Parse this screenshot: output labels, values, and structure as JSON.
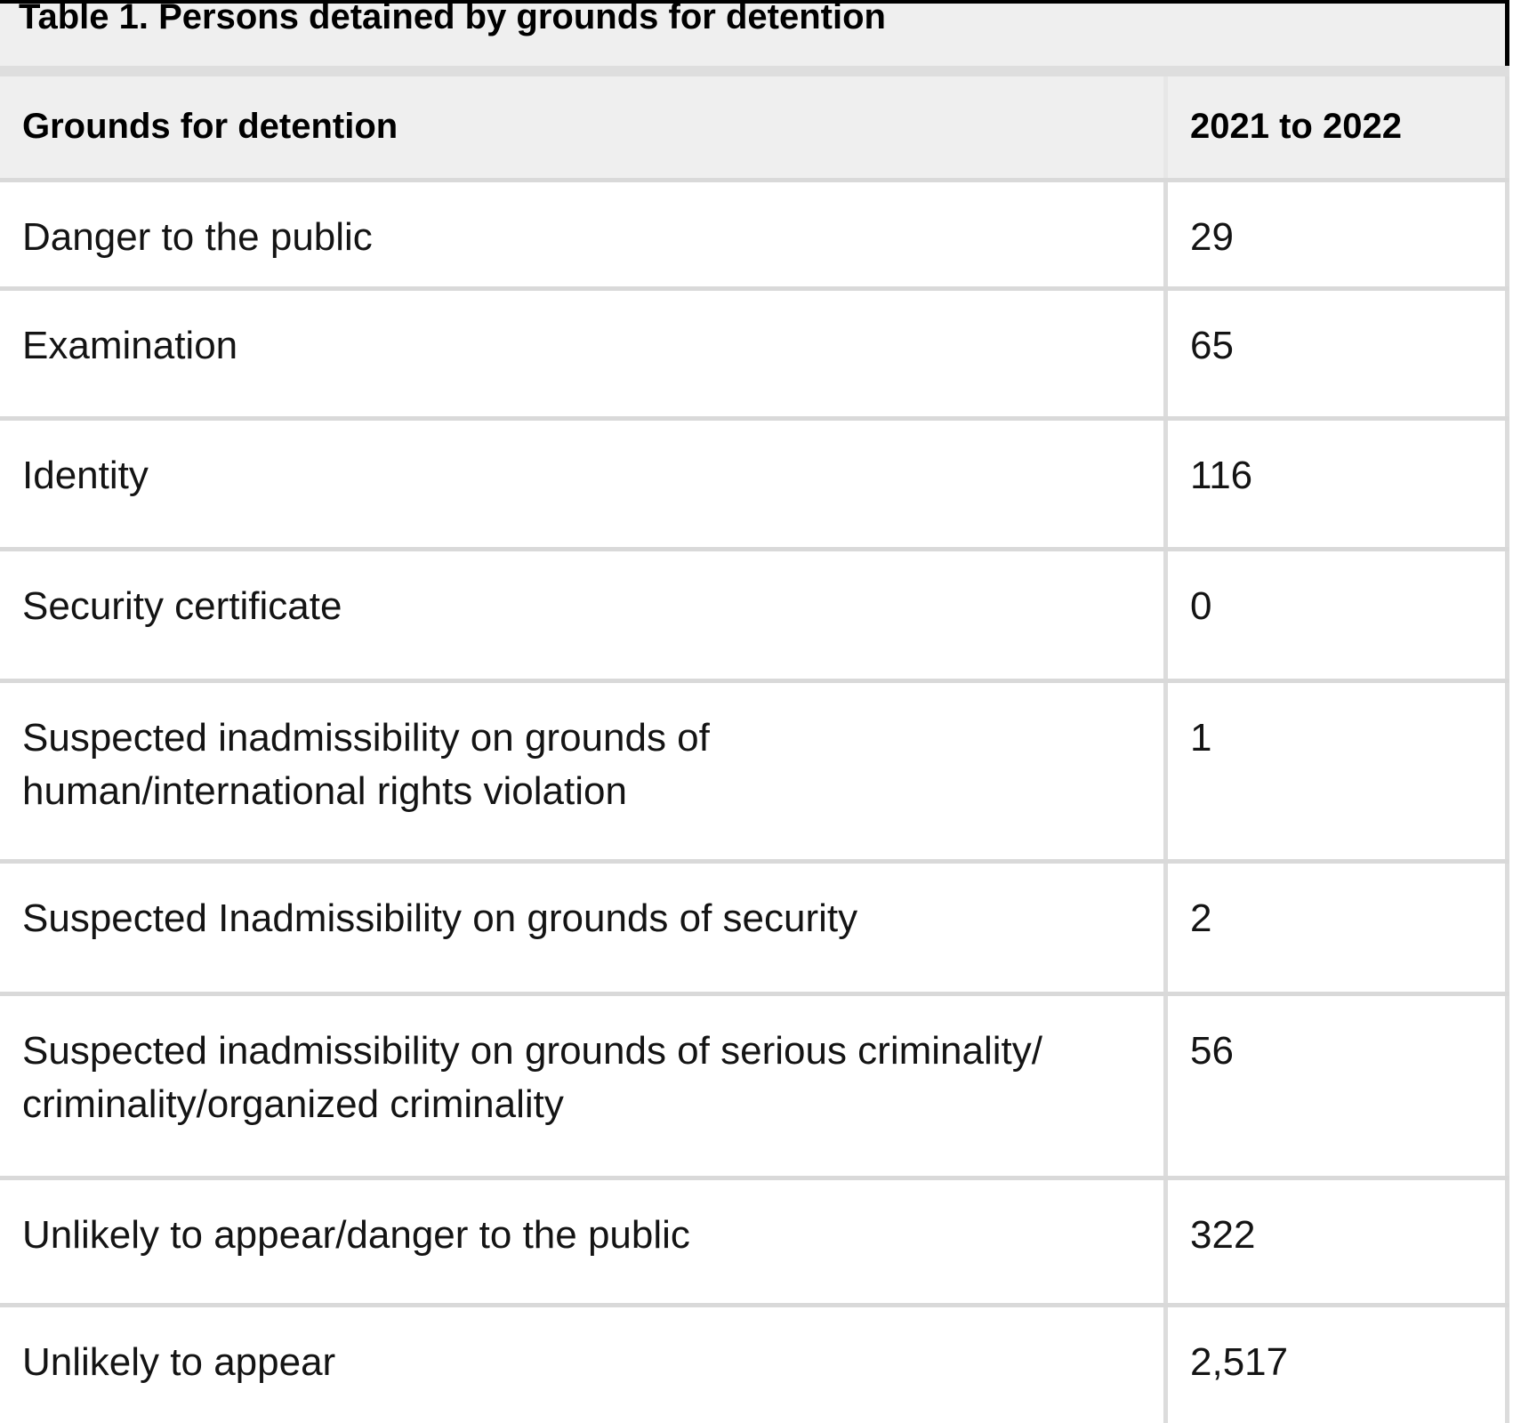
{
  "table": {
    "title": "Table 1. Persons detained by grounds for detention",
    "header": {
      "col1": "Grounds for detention",
      "col2": "2021 to 2022"
    },
    "rows": [
      {
        "label": "Danger to the public",
        "value": "29"
      },
      {
        "label": "Examination",
        "value": "65"
      },
      {
        "label": "Identity",
        "value": "116"
      },
      {
        "label": "Security certificate",
        "value": "0"
      },
      {
        "label": "Suspected inadmissibility on grounds of\nhuman/international rights violation",
        "value": "1"
      },
      {
        "label": "Suspected Inadmissibility on grounds of security",
        "value": "2"
      },
      {
        "label": "Suspected inadmissibility on grounds of serious criminality/\ncriminality/organized criminality",
        "value": "56"
      },
      {
        "label": "Unlikely to appear/danger to the public",
        "value": "322"
      },
      {
        "label": "Unlikely to appear",
        "value": "2,517"
      }
    ],
    "colors": {
      "title_band_bg": "#efefef",
      "header_bg": "#efefef",
      "separator": "#dedede",
      "grid_line": "#d9d9d9",
      "column_divider": "#dcdcdc",
      "top_edge": "#000000",
      "text": "#141414"
    }
  }
}
